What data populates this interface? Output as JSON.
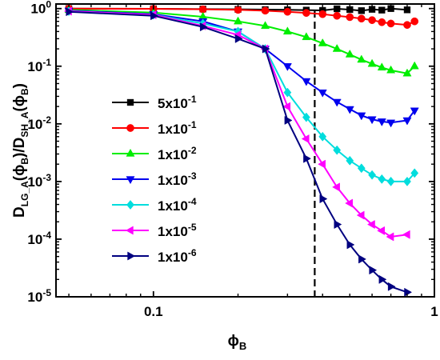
{
  "chart_data": {
    "type": "line",
    "xscale": "log",
    "yscale": "log",
    "xlim": [
      0.045,
      1.0
    ],
    "ylim": [
      1e-05,
      1.2
    ],
    "x_ticks": [
      {
        "value": 0.1,
        "label": "0.1"
      },
      {
        "value": 1.0,
        "label": "1"
      }
    ],
    "y_ticks": [
      {
        "value": 1.0,
        "mantissa": "10",
        "exponent": "0"
      },
      {
        "value": 0.1,
        "mantissa": "10",
        "exponent": "-1"
      },
      {
        "value": 0.01,
        "mantissa": "10",
        "exponent": "-2"
      },
      {
        "value": 0.001,
        "mantissa": "10",
        "exponent": "-3"
      },
      {
        "value": 0.0001,
        "mantissa": "10",
        "exponent": "-4"
      },
      {
        "value": 1e-05,
        "mantissa": "10",
        "exponent": "-5"
      }
    ],
    "xlabel": {
      "main": "ϕ",
      "sub": "B"
    },
    "ylabel": {
      "parts": [
        {
          "t": "D",
          "sub": false
        },
        {
          "t": "LG_A",
          "sub": true
        },
        {
          "t": "(ϕ",
          "sub": false
        },
        {
          "t": "B",
          "sub": true
        },
        {
          "t": ")/D",
          "sub": false
        },
        {
          "t": "SH_A",
          "sub": true
        },
        {
          "t": "(ϕ",
          "sub": false
        },
        {
          "t": "B",
          "sub": true
        },
        {
          "t": ")",
          "sub": false
        }
      ]
    },
    "vline": {
      "x": 0.375,
      "style": "dashed",
      "color": "#000000"
    },
    "legend_position": "center-left",
    "series": [
      {
        "name": {
          "base": "5x10",
          "exp": "-1"
        },
        "color": "#000000",
        "marker": "square",
        "x": [
          0.05,
          0.1,
          0.15,
          0.2,
          0.25,
          0.3,
          0.35,
          0.4,
          0.45,
          0.5,
          0.55,
          0.6,
          0.65,
          0.7,
          0.8
        ],
        "y": [
          1.0,
          0.99,
          0.98,
          0.97,
          0.96,
          0.95,
          0.94,
          0.93,
          0.99,
          0.96,
          0.92,
          0.97,
          0.94,
          1.0,
          0.95
        ]
      },
      {
        "name": {
          "base": "1x10",
          "exp": "-1"
        },
        "color": "#ff0000",
        "marker": "circle",
        "x": [
          0.05,
          0.1,
          0.15,
          0.2,
          0.25,
          0.3,
          0.35,
          0.4,
          0.45,
          0.5,
          0.55,
          0.6,
          0.65,
          0.7,
          0.8,
          0.85
        ],
        "y": [
          1.0,
          0.99,
          0.97,
          0.95,
          0.92,
          0.88,
          0.84,
          0.8,
          0.75,
          0.71,
          0.67,
          0.63,
          0.58,
          0.55,
          0.52,
          0.6
        ]
      },
      {
        "name": {
          "base": "1x10",
          "exp": "-2"
        },
        "color": "#00ee00",
        "marker": "triangle-up",
        "x": [
          0.05,
          0.1,
          0.15,
          0.2,
          0.25,
          0.3,
          0.35,
          0.4,
          0.45,
          0.5,
          0.55,
          0.6,
          0.65,
          0.7,
          0.8,
          0.85
        ],
        "y": [
          0.95,
          0.85,
          0.72,
          0.6,
          0.5,
          0.4,
          0.32,
          0.25,
          0.2,
          0.16,
          0.13,
          0.11,
          0.095,
          0.085,
          0.075,
          0.1
        ]
      },
      {
        "name": {
          "base": "1x10",
          "exp": "-3"
        },
        "color": "#0000ee",
        "marker": "triangle-down",
        "x": [
          0.05,
          0.1,
          0.15,
          0.2,
          0.25,
          0.3,
          0.35,
          0.4,
          0.45,
          0.5,
          0.55,
          0.6,
          0.65,
          0.7,
          0.8,
          0.85
        ],
        "y": [
          0.92,
          0.8,
          0.6,
          0.4,
          0.2,
          0.1,
          0.055,
          0.035,
          0.024,
          0.018,
          0.014,
          0.012,
          0.011,
          0.0105,
          0.0115,
          0.017
        ]
      },
      {
        "name": {
          "base": "1x10",
          "exp": "-4"
        },
        "color": "#00dddd",
        "marker": "diamond",
        "x": [
          0.05,
          0.1,
          0.15,
          0.2,
          0.25,
          0.3,
          0.35,
          0.4,
          0.45,
          0.5,
          0.55,
          0.6,
          0.65,
          0.7,
          0.8,
          0.85
        ],
        "y": [
          0.9,
          0.78,
          0.55,
          0.4,
          0.2,
          0.035,
          0.013,
          0.006,
          0.0035,
          0.0023,
          0.0017,
          0.0013,
          0.0011,
          0.001,
          0.001,
          0.0014
        ]
      },
      {
        "name": {
          "base": "1x10",
          "exp": "-5"
        },
        "color": "#ff00ff",
        "marker": "triangle-left",
        "x": [
          0.05,
          0.1,
          0.15,
          0.2,
          0.25,
          0.3,
          0.35,
          0.4,
          0.45,
          0.5,
          0.55,
          0.6,
          0.65,
          0.7,
          0.8
        ],
        "y": [
          0.9,
          0.78,
          0.5,
          0.35,
          0.2,
          0.02,
          0.0055,
          0.002,
          0.0008,
          0.00042,
          0.00026,
          0.00018,
          0.00014,
          0.00011,
          0.00012
        ]
      },
      {
        "name": {
          "base": "1x10",
          "exp": "-6"
        },
        "color": "#000080",
        "marker": "triangle-right",
        "x": [
          0.05,
          0.1,
          0.15,
          0.2,
          0.25,
          0.3,
          0.35,
          0.4,
          0.45,
          0.5,
          0.55,
          0.6,
          0.65,
          0.7,
          0.8
        ],
        "y": [
          0.88,
          0.75,
          0.48,
          0.3,
          0.2,
          0.0115,
          0.0025,
          0.0005,
          0.00018,
          8e-05,
          4.5e-05,
          2.9e-05,
          2e-05,
          1.5e-05,
          1.2e-05
        ]
      }
    ]
  }
}
